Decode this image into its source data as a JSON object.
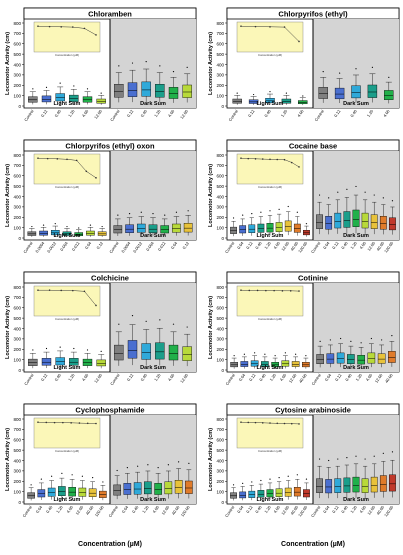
{
  "figure": {
    "ylabel": "Locomotor Activity (cm)",
    "xlabel": "Concentration (µM)",
    "inset_xlabel": "Concentration (µM)",
    "light_label": "Light Sum",
    "dark_label": "Dark Sum"
  },
  "chart_data": [
    {
      "type": "box",
      "title": "Chloramben",
      "categories": [
        "Control",
        "0.12",
        "0.40",
        "1.20",
        "4.00",
        "12.00"
      ],
      "ylim": [
        0,
        800
      ],
      "yticks": [
        0,
        100,
        200,
        300,
        400,
        500,
        600,
        700,
        800
      ],
      "light_medians": [
        60,
        65,
        80,
        70,
        60,
        45
      ],
      "dark_medians": [
        140,
        150,
        155,
        140,
        120,
        135
      ],
      "inset_values": [
        100,
        98,
        97,
        96,
        90,
        60
      ]
    },
    {
      "type": "box",
      "title": "Chlorpyrifos (ethyl)",
      "categories": [
        "Control",
        "0.12",
        "0.40",
        "1.20",
        "4.00"
      ],
      "ylim": [
        0,
        800
      ],
      "yticks": [
        0,
        100,
        200,
        300,
        400,
        500,
        600,
        700,
        800
      ],
      "light_medians": [
        45,
        40,
        50,
        45,
        35
      ],
      "dark_medians": [
        120,
        115,
        130,
        135,
        100
      ],
      "inset_values": [
        100,
        98,
        97,
        96,
        30
      ]
    },
    {
      "type": "box",
      "title": "Chlorpyrifos (ethyl) oxon",
      "categories": [
        "Control",
        "0.0004",
        "0.0012",
        "0.004",
        "0.012",
        "0.04",
        "0.12"
      ],
      "ylim": [
        0,
        800
      ],
      "yticks": [
        0,
        100,
        200,
        300,
        400,
        500,
        600,
        700,
        800
      ],
      "light_medians": [
        40,
        45,
        50,
        40,
        35,
        45,
        40
      ],
      "dark_medians": [
        80,
        85,
        90,
        85,
        80,
        90,
        95
      ],
      "inset_values": [
        100,
        98,
        97,
        95,
        90,
        40,
        10
      ]
    },
    {
      "type": "box",
      "title": "Cocaine base",
      "categories": [
        "Control",
        "0.04",
        "0.12",
        "0.40",
        "1.20",
        "4.00",
        "12.00",
        "40.00",
        "120.00"
      ],
      "ylim": [
        0,
        800
      ],
      "yticks": [
        0,
        100,
        200,
        300,
        400,
        500,
        600,
        700,
        800
      ],
      "light_medians": [
        70,
        80,
        85,
        90,
        95,
        100,
        110,
        90,
        50
      ],
      "dark_medians": [
        150,
        140,
        160,
        170,
        180,
        160,
        150,
        140,
        130
      ],
      "inset_values": [
        100,
        98,
        97,
        96,
        95,
        94,
        93,
        80,
        60
      ]
    },
    {
      "type": "box",
      "title": "Colchicine",
      "categories": [
        "Control",
        "0.12",
        "0.40",
        "1.20",
        "4.00",
        "12.00"
      ],
      "ylim": [
        0,
        800
      ],
      "yticks": [
        0,
        100,
        200,
        300,
        400,
        500,
        600,
        700,
        800
      ],
      "light_medians": [
        70,
        75,
        80,
        75,
        70,
        65
      ],
      "dark_medians": [
        160,
        190,
        170,
        175,
        160,
        150
      ],
      "inset_values": [
        100,
        100,
        99,
        98,
        95,
        30
      ]
    },
    {
      "type": "box",
      "title": "Cotinine",
      "categories": [
        "Control",
        "0.04",
        "0.12",
        "0.40",
        "1.20",
        "4.00",
        "12.00",
        "40.00"
      ],
      "ylim": [
        0,
        800
      ],
      "yticks": [
        0,
        100,
        200,
        300,
        400,
        500,
        600,
        700,
        800
      ],
      "light_medians": [
        50,
        55,
        60,
        55,
        50,
        60,
        55,
        50
      ],
      "dark_medians": [
        100,
        105,
        110,
        100,
        95,
        110,
        105,
        120
      ],
      "inset_values": [
        100,
        99,
        99,
        98,
        98,
        97,
        97,
        96
      ]
    },
    {
      "type": "box",
      "title": "Cyclophosphamide",
      "categories": [
        "Control",
        "0.04",
        "0.40",
        "1.20",
        "4.00",
        "12.00",
        "40.00",
        "120.00"
      ],
      "ylim": [
        0,
        800
      ],
      "yticks": [
        0,
        100,
        200,
        300,
        400,
        500,
        600,
        700,
        800
      ],
      "light_medians": [
        60,
        80,
        90,
        100,
        95,
        90,
        85,
        70
      ],
      "dark_medians": [
        110,
        120,
        125,
        130,
        120,
        130,
        140,
        135
      ],
      "inset_values": [
        100,
        99,
        98,
        98,
        97,
        96,
        95,
        94
      ]
    },
    {
      "type": "box",
      "title": "Cytosine arabinoside",
      "categories": [
        "Control",
        "0.04",
        "0.12",
        "0.40",
        "1.20",
        "4.00",
        "12.00",
        "40.00",
        "120.00"
      ],
      "ylim": [
        0,
        800
      ],
      "yticks": [
        0,
        100,
        200,
        300,
        400,
        500,
        600,
        700,
        800
      ],
      "light_medians": [
        60,
        65,
        70,
        75,
        80,
        85,
        90,
        95,
        80
      ],
      "dark_medians": [
        150,
        145,
        150,
        155,
        160,
        150,
        160,
        170,
        175
      ],
      "inset_values": [
        100,
        99,
        98,
        97,
        96,
        95,
        94,
        93,
        92
      ]
    }
  ]
}
